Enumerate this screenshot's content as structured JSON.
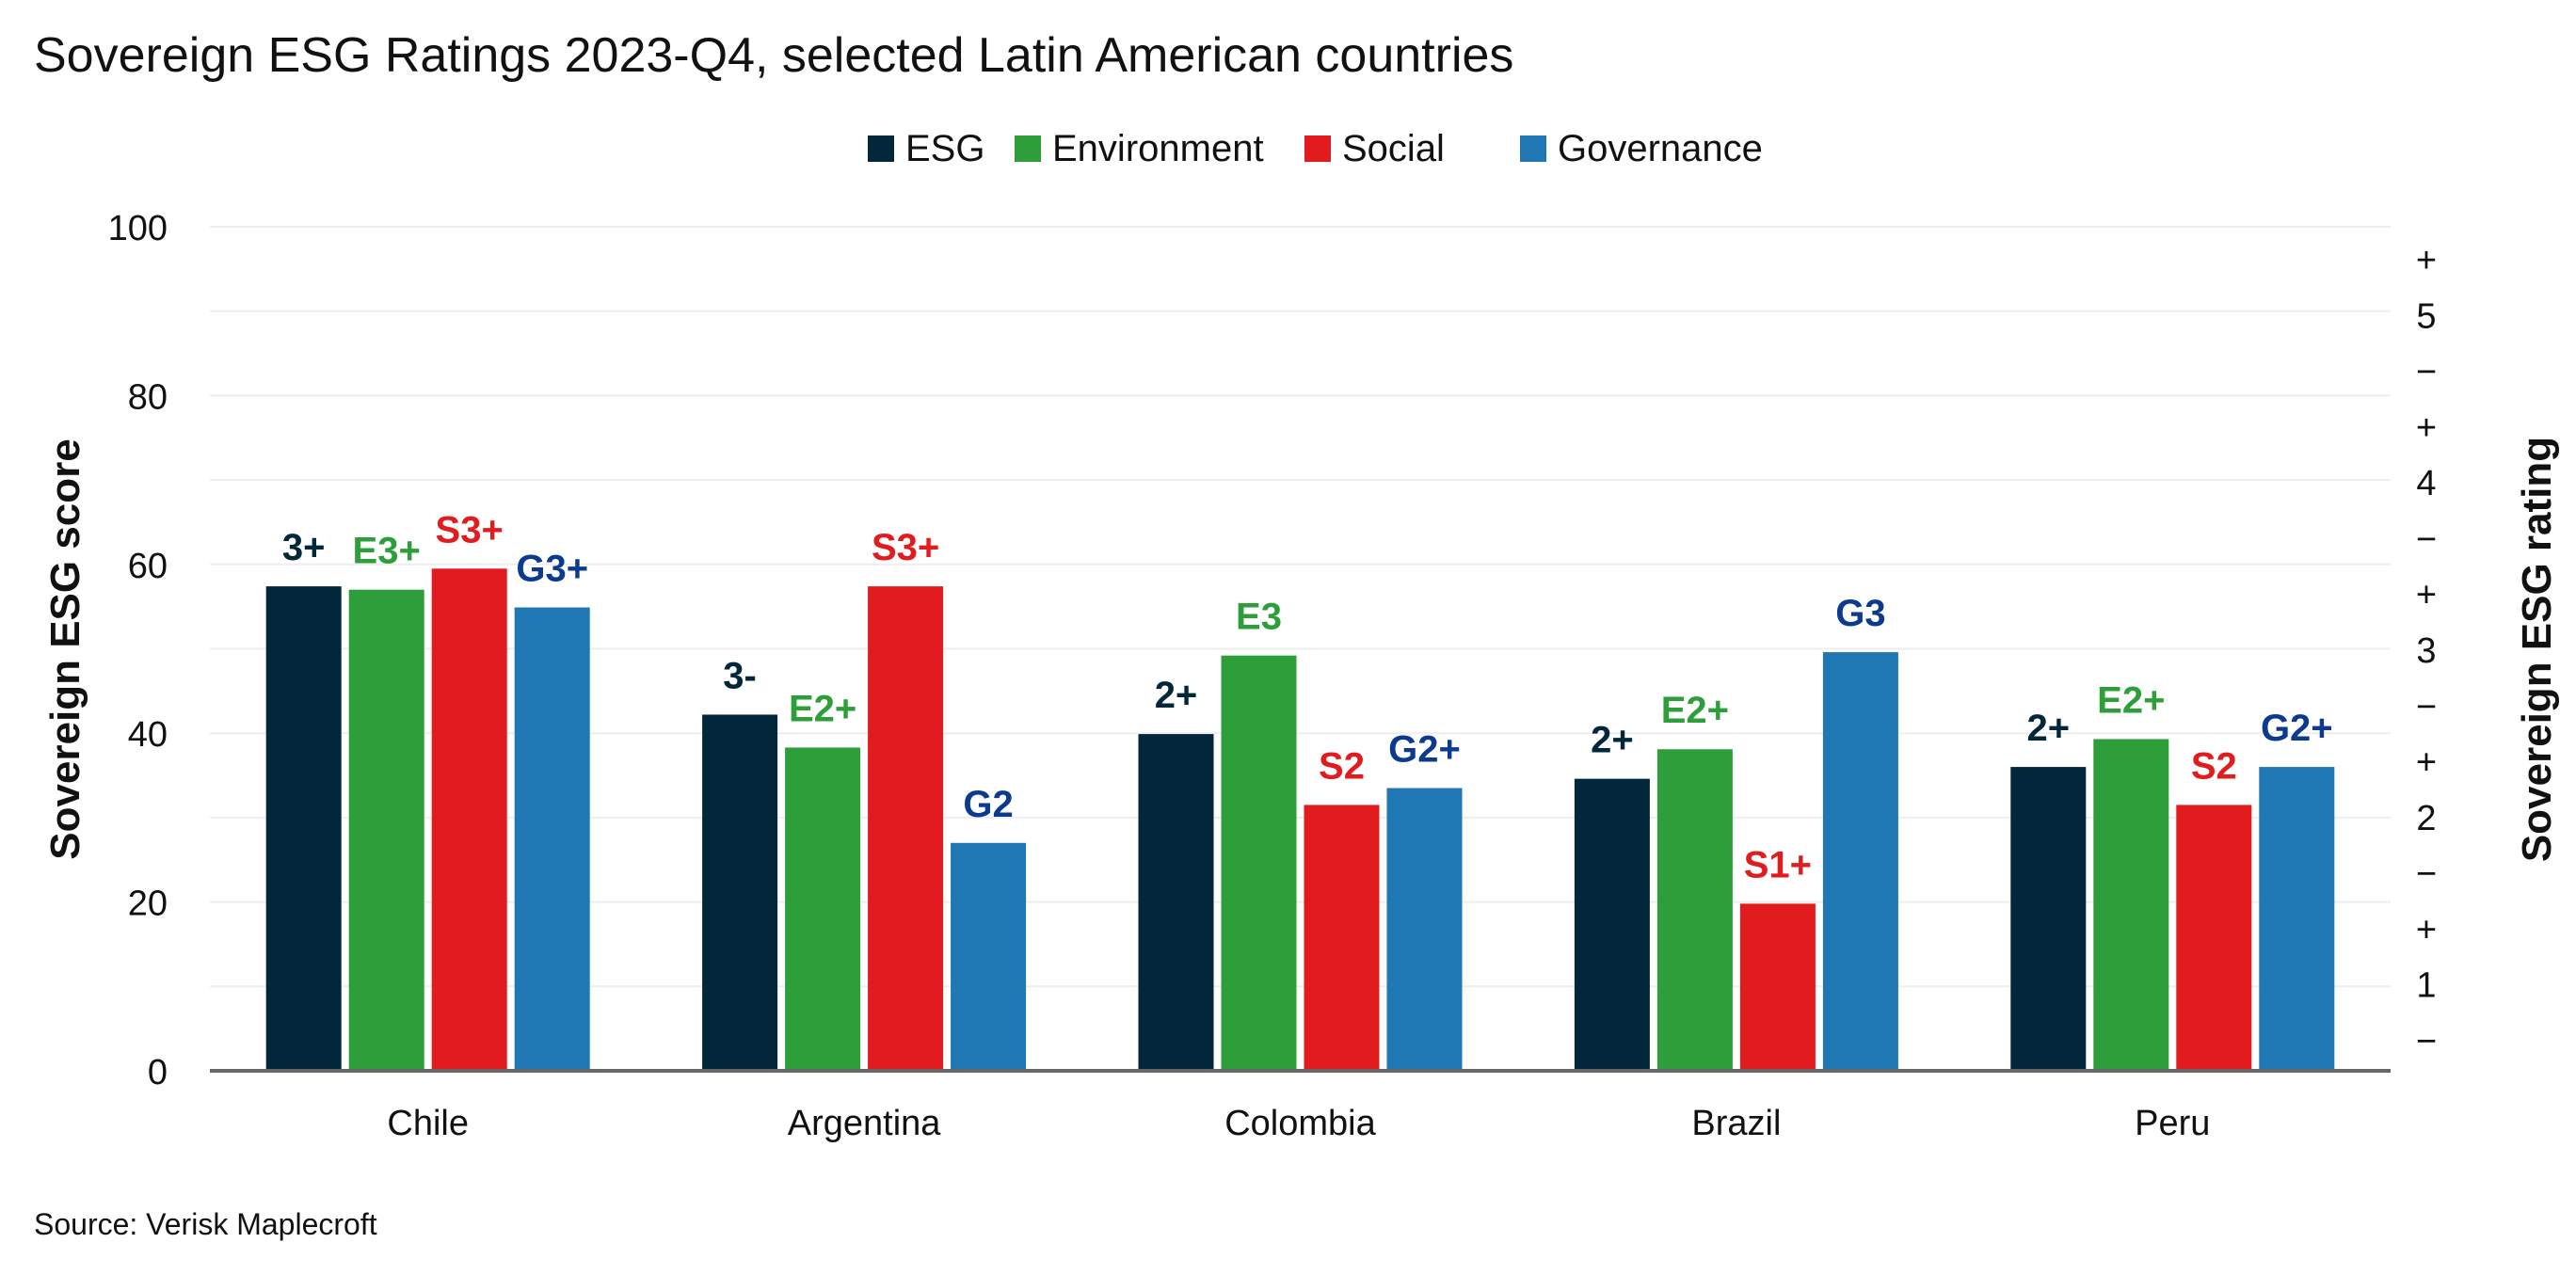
{
  "chart_data": {
    "type": "bar",
    "title": "Sovereign ESG Ratings 2023-Q4, selected Latin American countries",
    "ylabel": "Sovereign ESG score",
    "y2label": "Sovereign ESG rating",
    "ylim": [
      0,
      100
    ],
    "yticks": [
      0,
      20,
      40,
      60,
      80,
      100
    ],
    "y2ticks": [
      "−",
      "1",
      "+",
      "−",
      "2",
      "+",
      "−",
      "3",
      "+",
      "−",
      "4",
      "+",
      "−",
      "5",
      "+"
    ],
    "grid": true,
    "legend_position": "top",
    "categories": [
      "Chile",
      "Argentina",
      "Colombia",
      "Brazil",
      "Peru"
    ],
    "series": [
      {
        "name": "ESG",
        "color": "#02263a",
        "label_color": "#02263a",
        "values": [
          57.4,
          42.2,
          39.9,
          34.6,
          36.0
        ],
        "labels": [
          "3+",
          "3-",
          "2+",
          "2+",
          "2+"
        ]
      },
      {
        "name": "Environment",
        "color": "#2e9e3a",
        "label_color": "#2e9e3a",
        "values": [
          57.0,
          38.3,
          49.2,
          38.1,
          39.3
        ],
        "labels": [
          "E3+",
          "E2+",
          "E3",
          "E2+",
          "E2+"
        ]
      },
      {
        "name": "Social",
        "color": "#e21b1e",
        "label_color": "#e21b1e",
        "values": [
          59.5,
          57.4,
          31.5,
          19.8,
          31.5
        ],
        "labels": [
          "S3+",
          "S3+",
          "S2",
          "S1+",
          "S2"
        ]
      },
      {
        "name": "Governance",
        "color": "#1f77b4",
        "label_color": "#0b3a8f",
        "values": [
          54.9,
          27.0,
          33.5,
          49.6,
          36.0
        ],
        "labels": [
          "G3+",
          "G2",
          "G2+",
          "G3",
          "G2+"
        ]
      }
    ],
    "source": "Source: Verisk Maplecroft"
  }
}
